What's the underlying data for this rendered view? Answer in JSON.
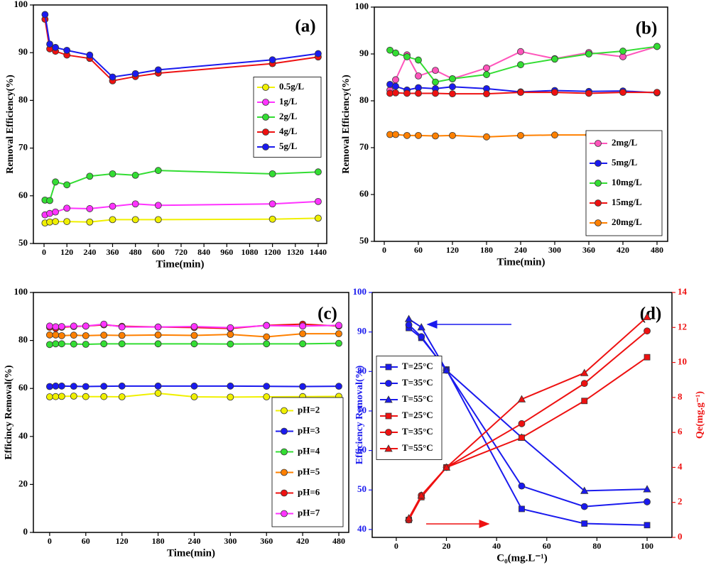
{
  "chart_data": [
    {
      "type": "line",
      "title": "(a)",
      "xlabel": "Time(min)",
      "ylabel": "Removal Efficiency(%)",
      "x": [
        5,
        30,
        60,
        120,
        240,
        360,
        480,
        600,
        1200,
        1440
      ],
      "xlim": [
        -56,
        1485
      ],
      "xticks": [
        0,
        120,
        240,
        360,
        480,
        600,
        720,
        840,
        960,
        1080,
        1200,
        1320,
        1440
      ],
      "ylim": [
        50,
        100
      ],
      "yticks": [
        50,
        60,
        70,
        80,
        90,
        100
      ],
      "legend": "center right",
      "series": [
        {
          "name": "0.5g/L",
          "color": "#f0f000",
          "values": [
            54.3,
            54.5,
            54.6,
            54.6,
            54.5,
            55.0,
            55.0,
            55.0,
            55.1,
            55.3
          ]
        },
        {
          "name": "1g/L",
          "color": "#ff33ff",
          "values": [
            56.0,
            56.3,
            56.6,
            57.4,
            57.3,
            57.8,
            58.3,
            58.0,
            58.3,
            58.8
          ]
        },
        {
          "name": "2g/L",
          "color": "#33dd33",
          "values": [
            59.1,
            59.0,
            62.9,
            62.3,
            64.1,
            64.6,
            64.3,
            65.3,
            64.6,
            65.0
          ]
        },
        {
          "name": "4g/L",
          "color": "#ee1111",
          "values": [
            97.0,
            90.8,
            90.3,
            89.5,
            88.8,
            84.1,
            85.0,
            85.7,
            87.7,
            89.1
          ]
        },
        {
          "name": "5g/L",
          "color": "#1a1aee",
          "values": [
            98.0,
            91.8,
            91.1,
            90.5,
            89.5,
            84.9,
            85.6,
            86.4,
            88.5,
            89.8
          ]
        }
      ]
    },
    {
      "type": "line",
      "title": "(b)",
      "xlabel": "Time(min)",
      "ylabel": "Removal Efficiency(%)",
      "x": [
        10,
        20,
        40,
        60,
        90,
        120,
        180,
        240,
        300,
        360,
        420,
        480
      ],
      "xlim": [
        -17.5,
        498.75
      ],
      "xticks": [
        0,
        60,
        120,
        180,
        240,
        300,
        360,
        420,
        480
      ],
      "ylim": [
        50,
        100
      ],
      "yticks": [
        50,
        60,
        70,
        80,
        90,
        100
      ],
      "legend": "lower right",
      "series": [
        {
          "name": "2mg/L",
          "color": "#ff55bb",
          "values": [
            82.3,
            84.5,
            89.8,
            85.3,
            86.5,
            84.7,
            87.0,
            90.5,
            89.0,
            90.3,
            89.4,
            91.6
          ]
        },
        {
          "name": "5mg/L",
          "color": "#1a1aee",
          "values": [
            83.5,
            83.1,
            82.3,
            82.8,
            82.6,
            83.0,
            82.6,
            81.9,
            82.2,
            82.0,
            82.1,
            81.7
          ]
        },
        {
          "name": "10mg/L",
          "color": "#33dd33",
          "values": [
            90.8,
            90.2,
            89.4,
            88.7,
            84.0,
            84.7,
            85.6,
            87.7,
            88.9,
            90.0,
            90.6,
            91.6
          ]
        },
        {
          "name": "15mg/L",
          "color": "#ee1111",
          "values": [
            81.6,
            81.7,
            81.6,
            81.6,
            81.6,
            81.5,
            81.5,
            81.8,
            81.8,
            81.6,
            81.8,
            81.8
          ]
        },
        {
          "name": "20mg/L",
          "color": "#ff8000",
          "values": [
            72.8,
            72.8,
            72.6,
            72.6,
            72.5,
            72.6,
            72.3,
            72.6,
            72.7,
            72.7,
            72.3,
            72.5
          ]
        }
      ]
    },
    {
      "type": "line",
      "title": "(c)",
      "xlabel": "Time(min)",
      "ylabel": "Efficincy Removal(%)",
      "x": [
        0,
        10,
        20,
        40,
        60,
        90,
        120,
        180,
        240,
        300,
        360,
        420,
        480
      ],
      "xlim": [
        -27,
        496.5
      ],
      "xticks": [
        0,
        60,
        120,
        180,
        240,
        300,
        360,
        420,
        480
      ],
      "ylim": [
        0,
        100
      ],
      "yticks": [
        0,
        20,
        40,
        60,
        80,
        100
      ],
      "legend": "lower right",
      "series": [
        {
          "name": "pH=2",
          "color": "#f0f000",
          "values": [
            56.5,
            56.6,
            56.7,
            56.8,
            56.6,
            56.6,
            56.5,
            58.0,
            56.5,
            56.4,
            56.5,
            56.6,
            56.7
          ]
        },
        {
          "name": "pH=3",
          "color": "#1a1aee",
          "values": [
            60.8,
            61.0,
            61.0,
            60.9,
            60.8,
            60.9,
            61.0,
            61.0,
            61.0,
            61.0,
            60.9,
            60.8,
            60.9
          ]
        },
        {
          "name": "pH=4",
          "color": "#33dd33",
          "values": [
            78.3,
            78.6,
            78.6,
            78.5,
            78.4,
            78.6,
            78.6,
            78.6,
            78.6,
            78.5,
            78.6,
            78.6,
            78.8
          ]
        },
        {
          "name": "pH=5",
          "color": "#ff8000",
          "values": [
            82.3,
            82.3,
            82.0,
            82.2,
            82.0,
            82.2,
            82.1,
            82.3,
            82.1,
            82.5,
            81.5,
            82.8,
            82.8
          ]
        },
        {
          "name": "pH=6",
          "color": "#ee1111",
          "values": [
            85.5,
            85.0,
            85.5,
            85.8,
            86.0,
            86.5,
            85.9,
            85.6,
            85.4,
            85.0,
            86.3,
            86.8,
            86.0
          ]
        },
        {
          "name": "pH=7",
          "color": "#ff33ff",
          "values": [
            86.0,
            85.7,
            85.8,
            86.0,
            86.0,
            86.8,
            85.6,
            85.6,
            85.8,
            85.3,
            86.2,
            86.0,
            86.3
          ]
        }
      ]
    },
    {
      "type": "line",
      "title": "(d)",
      "xlabel": "C₀(mg.L⁻¹)",
      "ylabel": "Efficiency Removal(%)",
      "y2label": "Qe(mg.g⁻¹)",
      "ylabel_color": "#1a1aee",
      "y2label_color": "#ee1111",
      "x": [
        5,
        10,
        20,
        50,
        75,
        100
      ],
      "xlim": [
        -9.6,
        109.9
      ],
      "xticks": [
        0,
        20,
        40,
        60,
        80,
        100
      ],
      "ylim": [
        38,
        100
      ],
      "yticks": [
        40,
        50,
        60,
        70,
        80,
        90,
        100
      ],
      "y2lim": [
        0,
        14
      ],
      "y2ticks": [
        0,
        2,
        4,
        6,
        8,
        10,
        12,
        14
      ],
      "legend": "center left",
      "series": [
        {
          "name": "T=25°C",
          "color": "#1a1aee",
          "marker": "square",
          "values": [
            91.0,
            88.5,
            80.5,
            45.2,
            41.5,
            41.1
          ]
        },
        {
          "name": "T=35°C",
          "color": "#1a1aee",
          "marker": "circle",
          "values": [
            91.8,
            88.8,
            80.3,
            51.0,
            45.8,
            47.0
          ]
        },
        {
          "name": "T=55°C",
          "color": "#1a1aee",
          "marker": "triangle",
          "values": [
            93.3,
            91.2,
            80.3,
            63.3,
            49.8,
            50.2
          ]
        },
        {
          "name": "T=25°C",
          "color": "#ee1111",
          "marker": "square",
          "axis": "y2",
          "values": [
            1.0,
            2.3,
            4.0,
            5.7,
            7.8,
            10.3
          ]
        },
        {
          "name": "T=35°C",
          "color": "#ee1111",
          "marker": "circle",
          "axis": "y2",
          "values": [
            1.0,
            2.4,
            4.0,
            6.5,
            8.8,
            11.8
          ]
        },
        {
          "name": "T=55°C",
          "color": "#ee1111",
          "marker": "triangle",
          "axis": "y2",
          "values": [
            1.1,
            2.4,
            4.0,
            7.9,
            9.4,
            12.6
          ]
        }
      ]
    }
  ]
}
